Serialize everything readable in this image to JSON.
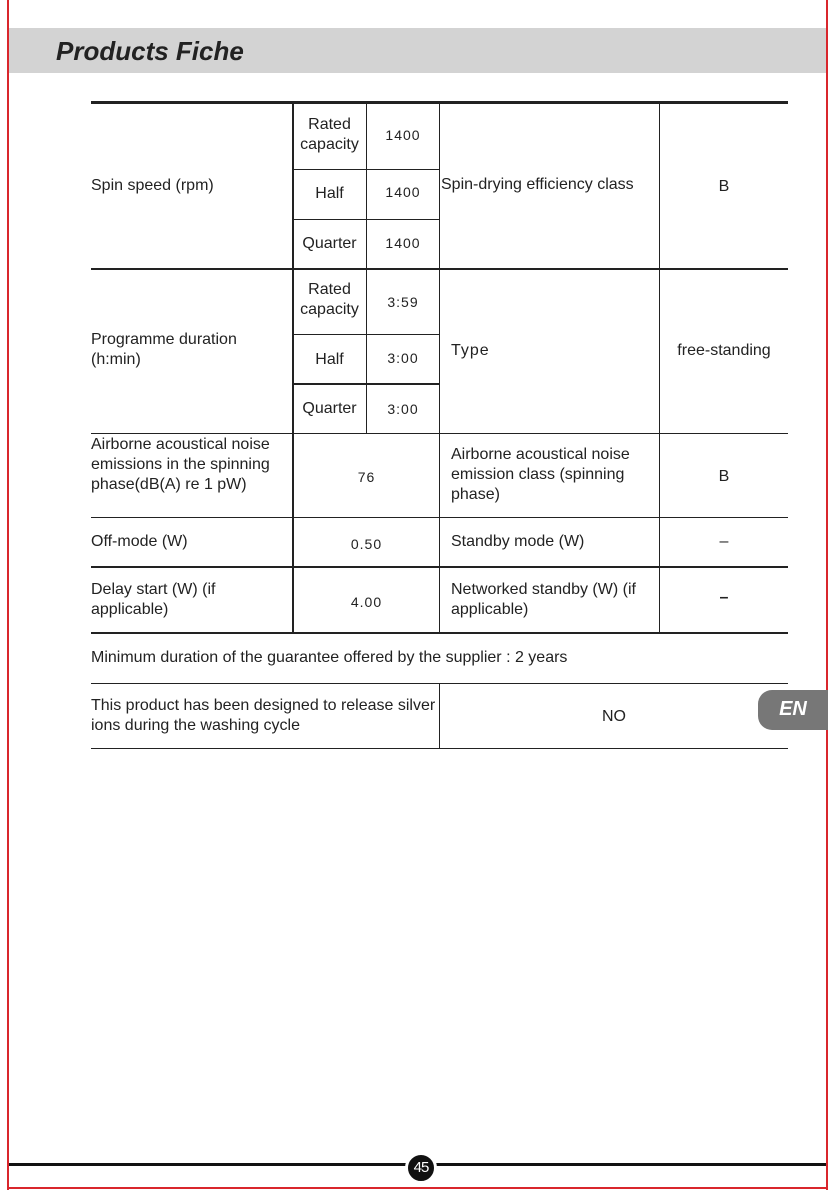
{
  "header": {
    "title": "Products Fiche"
  },
  "table": {
    "spin": {
      "label": "Spin speed (rpm)",
      "rated": "Rated capacity",
      "half": "Half",
      "quarter": "Quarter",
      "rated_val": "1400",
      "half_val": "1400",
      "quarter_val": "1400",
      "right_label": "Spin-drying efficiency class",
      "right_val": "B"
    },
    "duration": {
      "label": "Programme duration (h:min)",
      "rated": "Rated capacity",
      "half": "Half",
      "quarter": "Quarter",
      "rated_val": "3:59",
      "half_val": "3:00",
      "quarter_val": "3:00",
      "right_label": "Type",
      "right_val": "free-standing"
    },
    "noise": {
      "label": "Airborne acoustical noise emissions in the spinning phase(dB(A) re 1 pW)",
      "val": "76",
      "right_label": "Airborne acoustical noise emission class (spinning phase)",
      "right_val": "B"
    },
    "offmode": {
      "label": "Off-mode (W)",
      "val": "0.50",
      "right_label": "Standby mode (W)",
      "right_val": "–"
    },
    "delay": {
      "label": "Delay start (W) (if applicable)",
      "val": "4.00",
      "right_label": "Networked standby (W) (if applicable)",
      "right_val": "–"
    }
  },
  "guarantee": "Minimum duration of the guarantee offered by the supplier : 2 years",
  "silver": {
    "label": "This product has been designed to release silver ions during the washing cycle",
    "val": "NO"
  },
  "lang_tab": "EN",
  "page_number": "45",
  "colors": {
    "border": "#d9262c",
    "band": "#d3d3d3"
  }
}
